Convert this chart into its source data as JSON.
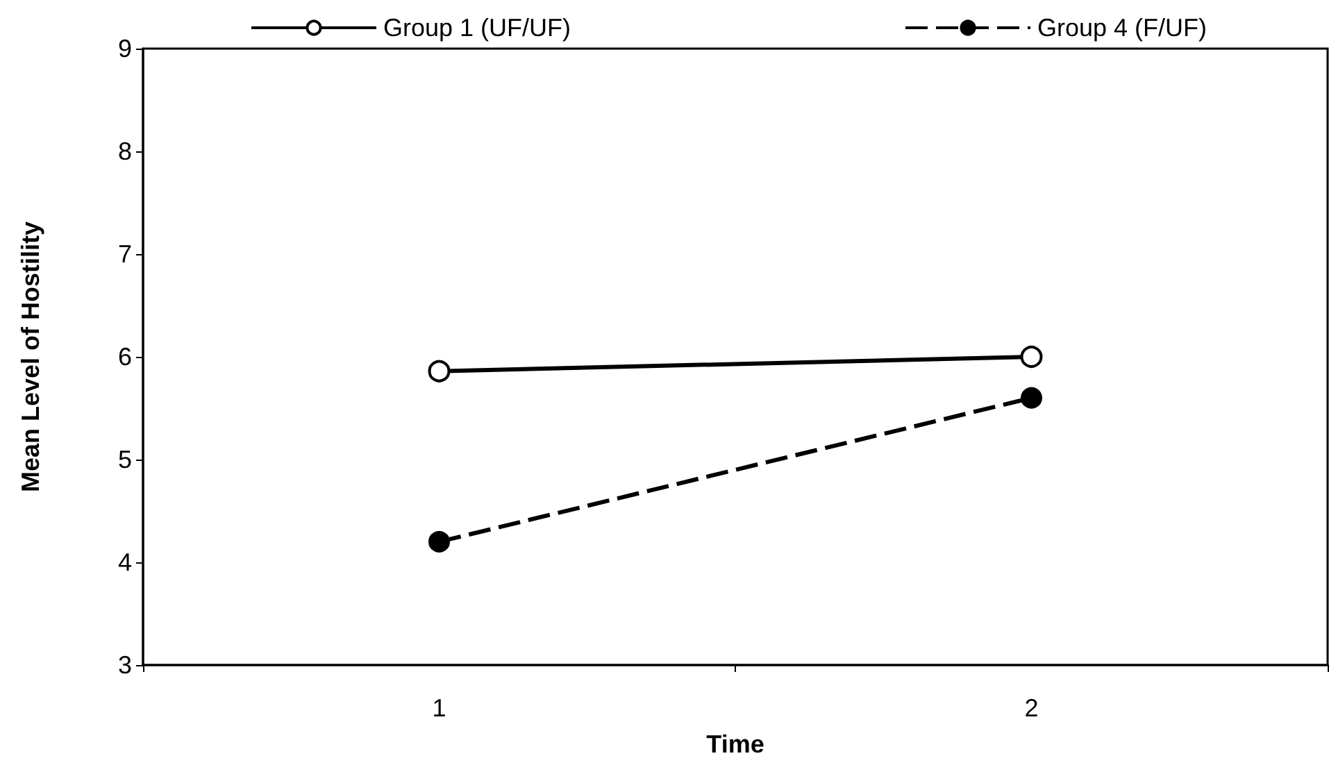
{
  "chart_data": {
    "type": "line",
    "xlabel": "Time",
    "ylabel": "Mean Level of Hostility",
    "categories": [
      "1",
      "2"
    ],
    "series": [
      {
        "name": "Group 1 (UF/UF)",
        "color": "#000000",
        "line_style": "solid",
        "values": [
          5.86,
          6.0
        ]
      },
      {
        "name": "Group 4 (F/UF)",
        "color": "#000000",
        "line_style": "dashed",
        "values": [
          4.2,
          5.6
        ]
      }
    ],
    "ylim": [
      3,
      9
    ],
    "yticks": [
      3,
      4,
      5,
      6,
      7,
      8,
      9
    ],
    "grid": false,
    "legend": "top",
    "marker": "circle"
  }
}
